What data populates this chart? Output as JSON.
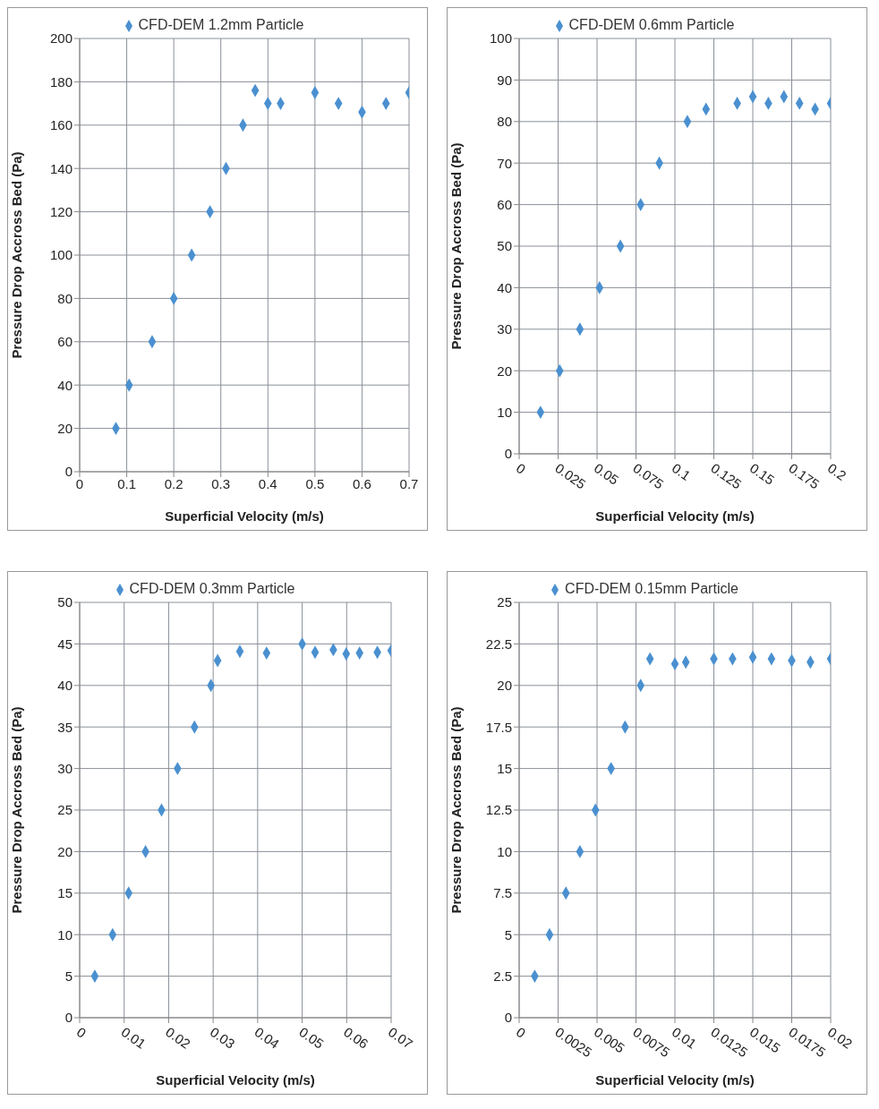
{
  "chart_data": [
    {
      "type": "scatter",
      "xlabel": "Superficial Velocity (m/s)",
      "ylabel": "Pressure Drop Accross Bed (Pa)",
      "marker": "diamond",
      "grid": true,
      "legend": "top",
      "xlim": [
        0,
        0.7
      ],
      "xticks": [
        0,
        0.1,
        0.2,
        0.3,
        0.4,
        0.5,
        0.6,
        0.7
      ],
      "ylim": [
        0,
        200
      ],
      "yticks": [
        0,
        20,
        40,
        60,
        80,
        100,
        120,
        140,
        160,
        180,
        200
      ],
      "series": [
        {
          "name": "CFD-DEM 1.2mm Particle",
          "color": "#4a90d0",
          "x": [
            0.077,
            0.105,
            0.154,
            0.2,
            0.238,
            0.277,
            0.311,
            0.347,
            0.373,
            0.4,
            0.427,
            0.5,
            0.55,
            0.6,
            0.651,
            0.7
          ],
          "values": [
            20,
            40,
            60,
            80,
            100,
            120,
            140,
            160,
            176,
            170,
            170,
            175,
            170,
            166,
            170,
            175
          ]
        }
      ]
    },
    {
      "type": "scatter",
      "xlabel": "Superficial Velocity (m/s)",
      "ylabel": "Pressure Drop Accross Bed (Pa)",
      "marker": "diamond",
      "grid": true,
      "legend": "top",
      "xlim": [
        0,
        0.2
      ],
      "xticks": [
        0,
        0.025,
        0.05,
        0.075,
        0.1,
        0.125,
        0.15,
        0.175,
        0.2
      ],
      "ylim": [
        0,
        100
      ],
      "yticks": [
        0,
        10,
        20,
        30,
        40,
        50,
        60,
        70,
        80,
        90,
        100
      ],
      "series": [
        {
          "name": "CFD-DEM 0.6mm Particle",
          "color": "#4a90d0",
          "x": [
            0.0137,
            0.026,
            0.039,
            0.0516,
            0.065,
            0.078,
            0.09,
            0.108,
            0.12,
            0.14,
            0.15,
            0.16,
            0.17,
            0.18,
            0.19,
            0.2
          ],
          "values": [
            10,
            20,
            30,
            40,
            50,
            60,
            70,
            80,
            83,
            84.4,
            86,
            84.4,
            86,
            84.4,
            83,
            84.4
          ]
        }
      ]
    },
    {
      "type": "scatter",
      "xlabel": "Superficial Velocity (m/s)",
      "ylabel": "Pressure Drop Accross Bed (Pa)",
      "marker": "diamond",
      "grid": true,
      "legend": "top",
      "xlim": [
        0,
        0.07
      ],
      "xticks": [
        0,
        0.01,
        0.02,
        0.03,
        0.04,
        0.05,
        0.06,
        0.07
      ],
      "ylim": [
        0,
        50
      ],
      "yticks": [
        0,
        5,
        10,
        15,
        20,
        25,
        30,
        35,
        40,
        45,
        50
      ],
      "series": [
        {
          "name": "CFD-DEM 0.3mm Particle",
          "color": "#4a90d0",
          "x": [
            0.0034,
            0.0074,
            0.011,
            0.0148,
            0.0184,
            0.022,
            0.0258,
            0.0295,
            0.031,
            0.036,
            0.042,
            0.05,
            0.0529,
            0.057,
            0.0599,
            0.0629,
            0.0669,
            0.07
          ],
          "values": [
            5,
            10,
            15,
            20,
            25,
            30,
            35,
            40,
            43,
            44.1,
            43.9,
            45,
            44,
            44.3,
            43.8,
            43.9,
            44,
            44.2
          ]
        }
      ]
    },
    {
      "type": "scatter",
      "xlabel": "Superficial Velocity (m/s)",
      "ylabel": "Pressure Drop Accross Bed (Pa)",
      "marker": "diamond",
      "grid": true,
      "legend": "top",
      "xlim": [
        0,
        0.02
      ],
      "xticks": [
        0,
        0.0025,
        0.005,
        0.0075,
        0.01,
        0.0125,
        0.015,
        0.0175,
        0.02
      ],
      "ylim": [
        0,
        25
      ],
      "yticks": [
        0,
        2.5,
        5,
        7.5,
        10,
        12.5,
        15,
        17.5,
        20,
        22.5,
        25
      ],
      "series": [
        {
          "name": "CFD-DEM 0.15mm Particle",
          "color": "#4a90d0",
          "x": [
            0.001,
            0.00195,
            0.003,
            0.0039,
            0.0049,
            0.0059,
            0.0068,
            0.0078,
            0.0084,
            0.01,
            0.0107,
            0.0125,
            0.0137,
            0.015,
            0.0162,
            0.0175,
            0.0187,
            0.02
          ],
          "values": [
            2.5,
            5,
            7.5,
            10,
            12.5,
            15,
            17.5,
            20,
            21.6,
            21.3,
            21.4,
            21.6,
            21.6,
            21.7,
            21.6,
            21.5,
            21.4,
            21.6
          ]
        }
      ]
    }
  ]
}
